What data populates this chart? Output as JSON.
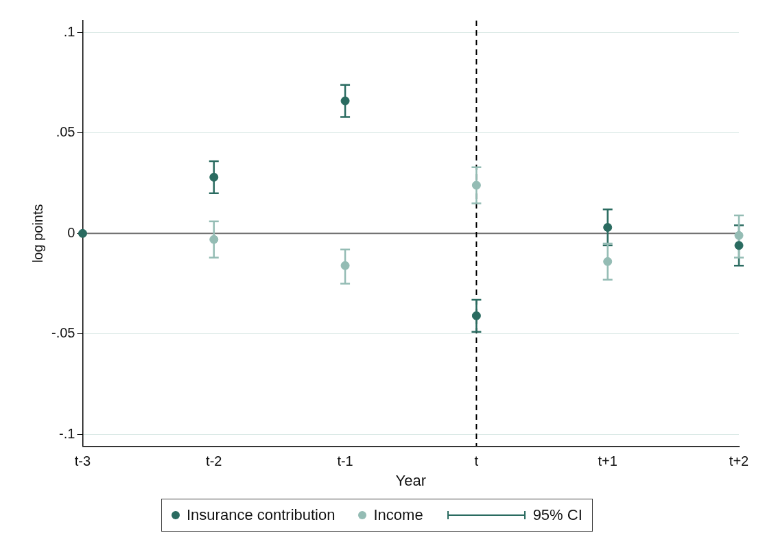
{
  "chart_data": {
    "type": "scatter",
    "xlabel": "Year",
    "ylabel": "log points",
    "categories": [
      "t-3",
      "t-2",
      "t-1",
      "t",
      "t+1",
      "t+2"
    ],
    "series": [
      {
        "name": "Insurance contribution",
        "color": "#2a6b60",
        "values": [
          0,
          0.028,
          0.066,
          -0.041,
          0.003,
          -0.006
        ],
        "errors": [
          null,
          [
            0.02,
            0.036
          ],
          [
            0.058,
            0.074
          ],
          [
            -0.049,
            -0.033
          ],
          [
            -0.006,
            0.012
          ],
          [
            -0.016,
            0.004
          ]
        ]
      },
      {
        "name": "Income",
        "color": "#94bcb4",
        "values": [
          null,
          -0.003,
          -0.016,
          0.024,
          -0.014,
          -0.001
        ],
        "errors": [
          null,
          [
            -0.012,
            0.006
          ],
          [
            -0.025,
            -0.008
          ],
          [
            0.015,
            0.033
          ],
          [
            -0.023,
            -0.005
          ],
          [
            -0.012,
            0.009
          ]
        ]
      }
    ],
    "ylim": [
      -0.106,
      0.106
    ],
    "yticks": [
      {
        "value": -0.1,
        "label": "-.1"
      },
      {
        "value": -0.05,
        "label": "-.05"
      },
      {
        "value": 0,
        "label": "0"
      },
      {
        "value": 0.05,
        "label": ".05"
      },
      {
        "value": 0.1,
        "label": ".1"
      }
    ],
    "ref_lines": [
      {
        "axis": "y",
        "value": 0,
        "color": "#707070",
        "line_style": "solid"
      },
      {
        "axis": "x",
        "value": "t",
        "color": "#000000",
        "line_style": "dashed"
      }
    ],
    "annotations": [
      "95% CI"
    ],
    "grid": "y",
    "legend": "bottom",
    "marker": "circle"
  }
}
